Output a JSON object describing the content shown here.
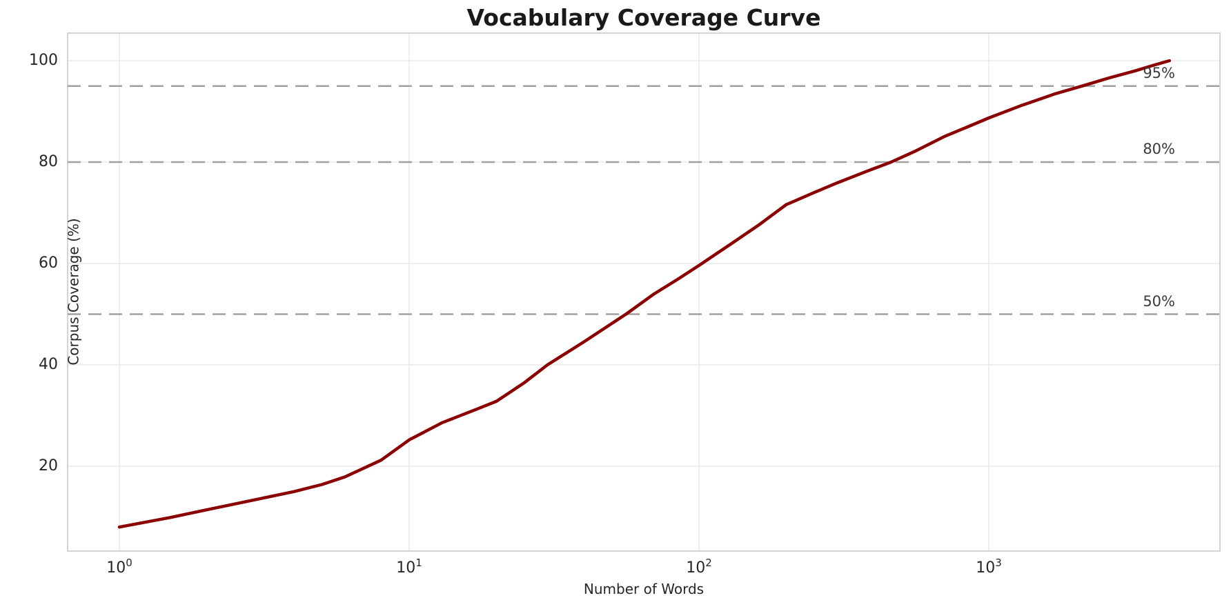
{
  "colors": {
    "curve": "#8B0000",
    "threshold_line": "#a0a0a0",
    "grid": "#e8e8e8",
    "spine": "#d0d0d0",
    "title_text": "#1a1a1a",
    "tick_text": "#262626",
    "threshold_text": "#3a3a3a",
    "background": "#ffffff"
  },
  "chart_data": {
    "type": "line",
    "title": "Vocabulary Coverage Curve",
    "xlabel": "Number of Words",
    "ylabel": "Corpus Coverage (%)",
    "x_scale": "log",
    "grid": true,
    "legend": "none",
    "xlim_log10": [
      -0.1786,
      3.7976
    ],
    "ylim": [
      3.27,
      105.44
    ],
    "x_ticks": [
      {
        "value": 1,
        "base": "10",
        "exp": "0"
      },
      {
        "value": 10,
        "base": "10",
        "exp": "1"
      },
      {
        "value": 100,
        "base": "10",
        "exp": "2"
      },
      {
        "value": 1000,
        "base": "10",
        "exp": "3"
      }
    ],
    "y_ticks": [
      20,
      40,
      60,
      80,
      100
    ],
    "thresholds": [
      {
        "value": 50,
        "label": "50%"
      },
      {
        "value": 80,
        "label": "80%"
      },
      {
        "value": 95,
        "label": "95%"
      }
    ],
    "series": [
      {
        "name": "coverage",
        "x": [
          1,
          1.5,
          2,
          3,
          4,
          5,
          6,
          8,
          10,
          13,
          17,
          20,
          25,
          30,
          40,
          56,
          70,
          85,
          100,
          130,
          160,
          200,
          250,
          300,
          380,
          460,
          560,
          700,
          850,
          1000,
          1300,
          1700,
          2100,
          2600,
          3200,
          3700,
          4200
        ],
        "y": [
          8.0,
          9.9,
          11.4,
          13.5,
          15.0,
          16.4,
          17.9,
          21.2,
          25.2,
          28.6,
          31.2,
          32.8,
          36.5,
          40.0,
          44.5,
          50.0,
          54.0,
          57.0,
          59.6,
          64.0,
          67.5,
          71.6,
          74.0,
          75.9,
          78.2,
          80.0,
          82.2,
          85.0,
          87.0,
          88.7,
          91.2,
          93.5,
          95.0,
          96.6,
          98.0,
          99.1,
          100.0
        ]
      }
    ]
  }
}
